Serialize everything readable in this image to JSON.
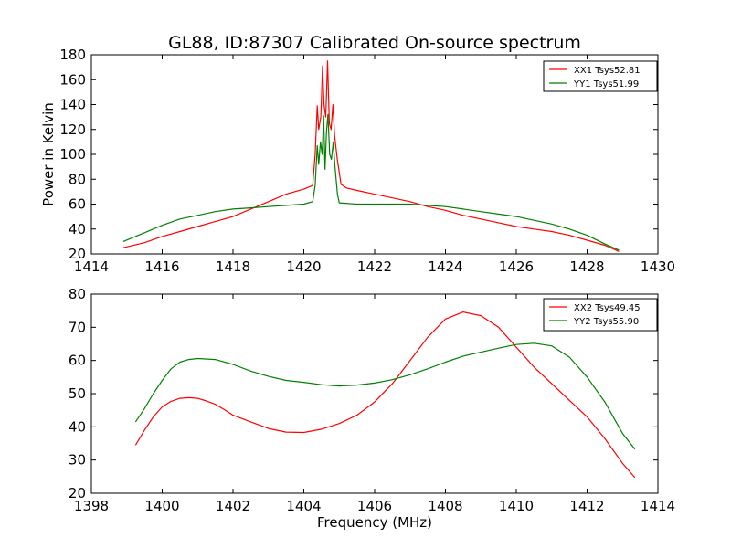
{
  "figure": {
    "title": "GL88, ID:87307 Calibrated On-source spectrum",
    "ylabel": "Power in Kelvin",
    "xlabel": "Frequency (MHz)"
  },
  "chart_data": [
    {
      "type": "line",
      "xlim": [
        1414,
        1430
      ],
      "ylim": [
        20,
        180
      ],
      "xticks": [
        1414,
        1416,
        1418,
        1420,
        1422,
        1424,
        1426,
        1428,
        1430
      ],
      "yticks": [
        20,
        40,
        60,
        80,
        100,
        120,
        140,
        160,
        180
      ],
      "grid": false,
      "legend_position": "top-right",
      "series": [
        {
          "name": "XX1 Tsys52.81",
          "color": "#ff0000",
          "points": [
            [
              1414.9,
              25
            ],
            [
              1415.5,
              29
            ],
            [
              1416.0,
              34
            ],
            [
              1416.5,
              38
            ],
            [
              1417.0,
              42
            ],
            [
              1417.5,
              46
            ],
            [
              1418.0,
              50
            ],
            [
              1418.5,
              56
            ],
            [
              1419.0,
              62
            ],
            [
              1419.5,
              68
            ],
            [
              1420.0,
              72
            ],
            [
              1420.25,
              75
            ],
            [
              1420.32,
              100
            ],
            [
              1420.38,
              139
            ],
            [
              1420.42,
              120
            ],
            [
              1420.48,
              130
            ],
            [
              1420.53,
              171
            ],
            [
              1420.57,
              140
            ],
            [
              1420.62,
              130
            ],
            [
              1420.67,
              175
            ],
            [
              1420.72,
              125
            ],
            [
              1420.77,
              120
            ],
            [
              1420.82,
              140
            ],
            [
              1420.87,
              115
            ],
            [
              1420.95,
              95
            ],
            [
              1421.05,
              76
            ],
            [
              1421.2,
              73
            ],
            [
              1421.5,
              71
            ],
            [
              1422.0,
              68
            ],
            [
              1422.5,
              65
            ],
            [
              1423.0,
              62
            ],
            [
              1423.5,
              58
            ],
            [
              1424.0,
              55
            ],
            [
              1424.5,
              51
            ],
            [
              1425.0,
              48
            ],
            [
              1425.5,
              45
            ],
            [
              1426.0,
              42
            ],
            [
              1426.5,
              40
            ],
            [
              1427.0,
              38
            ],
            [
              1427.5,
              35
            ],
            [
              1428.0,
              31
            ],
            [
              1428.5,
              27
            ],
            [
              1428.9,
              22
            ]
          ]
        },
        {
          "name": "YY1 Tsys51.99",
          "color": "#008000",
          "points": [
            [
              1414.9,
              30
            ],
            [
              1415.5,
              37
            ],
            [
              1416.0,
              43
            ],
            [
              1416.5,
              48
            ],
            [
              1417.0,
              51
            ],
            [
              1417.5,
              54
            ],
            [
              1418.0,
              56
            ],
            [
              1418.5,
              57
            ],
            [
              1419.0,
              58
            ],
            [
              1419.5,
              59
            ],
            [
              1420.0,
              60
            ],
            [
              1420.25,
              62
            ],
            [
              1420.32,
              75
            ],
            [
              1420.38,
              107
            ],
            [
              1420.42,
              92
            ],
            [
              1420.47,
              110
            ],
            [
              1420.52,
              100
            ],
            [
              1420.56,
              131
            ],
            [
              1420.6,
              88
            ],
            [
              1420.64,
              118
            ],
            [
              1420.68,
              132
            ],
            [
              1420.73,
              100
            ],
            [
              1420.78,
              96
            ],
            [
              1420.83,
              110
            ],
            [
              1420.88,
              90
            ],
            [
              1420.95,
              68
            ],
            [
              1421.0,
              61
            ],
            [
              1421.5,
              60
            ],
            [
              1422.0,
              60
            ],
            [
              1422.5,
              60
            ],
            [
              1423.0,
              60
            ],
            [
              1423.5,
              59
            ],
            [
              1424.0,
              58
            ],
            [
              1424.5,
              56
            ],
            [
              1425.0,
              54
            ],
            [
              1425.5,
              52
            ],
            [
              1426.0,
              50
            ],
            [
              1426.5,
              47
            ],
            [
              1427.0,
              44
            ],
            [
              1427.5,
              40
            ],
            [
              1428.0,
              35
            ],
            [
              1428.5,
              28
            ],
            [
              1428.9,
              23
            ]
          ]
        }
      ]
    },
    {
      "type": "line",
      "xlim": [
        1398,
        1414
      ],
      "ylim": [
        20,
        80
      ],
      "xticks": [
        1398,
        1400,
        1402,
        1404,
        1406,
        1408,
        1410,
        1412,
        1414
      ],
      "yticks": [
        20,
        30,
        40,
        50,
        60,
        70,
        80
      ],
      "grid": false,
      "legend_position": "top-right",
      "series": [
        {
          "name": "XX2 Tsys49.45",
          "color": "#ff0000",
          "points": [
            [
              1399.25,
              34.5
            ],
            [
              1399.5,
              39
            ],
            [
              1399.75,
              43
            ],
            [
              1400.0,
              46
            ],
            [
              1400.25,
              47.7
            ],
            [
              1400.5,
              48.6
            ],
            [
              1400.75,
              48.8
            ],
            [
              1401.0,
              48.6
            ],
            [
              1401.25,
              47.8
            ],
            [
              1401.5,
              46.8
            ],
            [
              1401.75,
              45.2
            ],
            [
              1402.0,
              43.5
            ],
            [
              1402.5,
              41.5
            ],
            [
              1403.0,
              39.5
            ],
            [
              1403.5,
              38.4
            ],
            [
              1404.0,
              38.3
            ],
            [
              1404.5,
              39.3
            ],
            [
              1405.0,
              41
            ],
            [
              1405.5,
              43.5
            ],
            [
              1406.0,
              47.5
            ],
            [
              1406.5,
              53
            ],
            [
              1407.0,
              60
            ],
            [
              1407.5,
              67
            ],
            [
              1408.0,
              72.5
            ],
            [
              1408.5,
              74.6
            ],
            [
              1409.0,
              73.5
            ],
            [
              1409.5,
              70
            ],
            [
              1410.0,
              64
            ],
            [
              1410.5,
              58
            ],
            [
              1411.0,
              53
            ],
            [
              1411.5,
              48
            ],
            [
              1412.0,
              43
            ],
            [
              1412.5,
              36.5
            ],
            [
              1413.0,
              29
            ],
            [
              1413.35,
              24.7
            ]
          ]
        },
        {
          "name": "YY2 Tsys55.90",
          "color": "#008000",
          "points": [
            [
              1399.25,
              41.5
            ],
            [
              1399.5,
              45.5
            ],
            [
              1399.75,
              50
            ],
            [
              1400.0,
              54
            ],
            [
              1400.25,
              57.5
            ],
            [
              1400.5,
              59.5
            ],
            [
              1400.75,
              60.3
            ],
            [
              1401.0,
              60.6
            ],
            [
              1401.5,
              60.3
            ],
            [
              1402.0,
              58.8
            ],
            [
              1402.5,
              56.8
            ],
            [
              1403.0,
              55.2
            ],
            [
              1403.5,
              54
            ],
            [
              1404.0,
              53.4
            ],
            [
              1404.5,
              52.7
            ],
            [
              1405.0,
              52.3
            ],
            [
              1405.5,
              52.6
            ],
            [
              1406.0,
              53.2
            ],
            [
              1406.5,
              54.2
            ],
            [
              1407.0,
              55.7
            ],
            [
              1407.5,
              57.5
            ],
            [
              1408.0,
              59.5
            ],
            [
              1408.5,
              61.3
            ],
            [
              1409.0,
              62.5
            ],
            [
              1409.5,
              63.7
            ],
            [
              1410.0,
              64.8
            ],
            [
              1410.5,
              65.2
            ],
            [
              1411.0,
              64.4
            ],
            [
              1411.5,
              61
            ],
            [
              1412.0,
              55
            ],
            [
              1412.5,
              47.5
            ],
            [
              1413.0,
              38
            ],
            [
              1413.35,
              33.3
            ]
          ]
        }
      ]
    }
  ]
}
